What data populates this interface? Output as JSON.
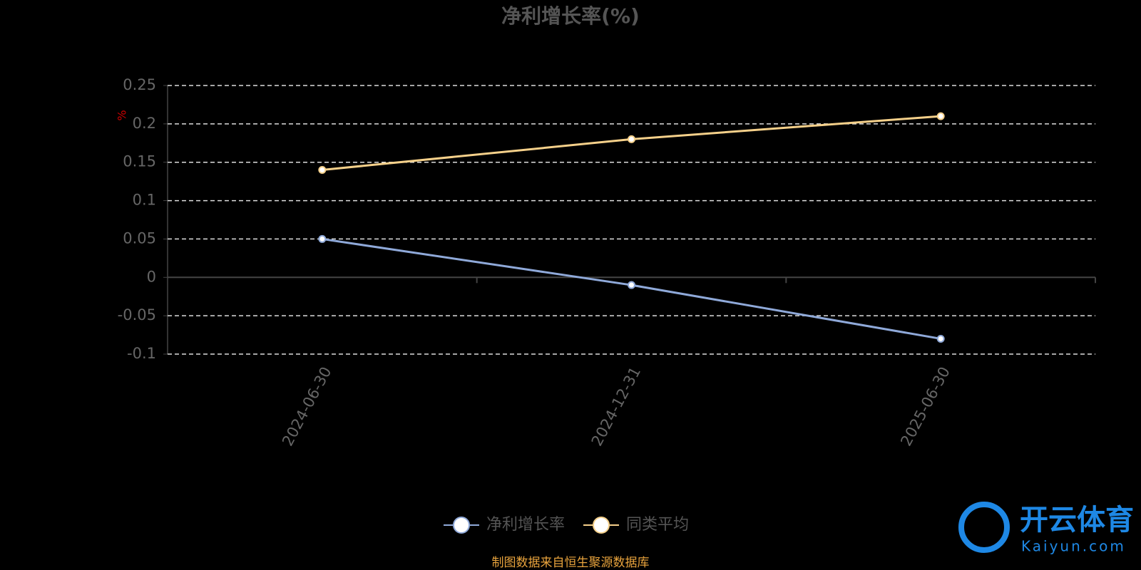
{
  "chart_data": {
    "type": "line",
    "title": "净利增长率(%)",
    "y_label": "%",
    "categories": [
      "2024-06-30",
      "2024-12-31",
      "2025-06-30"
    ],
    "series": [
      {
        "name": "净利增长率",
        "color": "#8fa9d9",
        "values": [
          0.05,
          -0.01,
          -0.08
        ]
      },
      {
        "name": "同类平均",
        "color": "#f5d08a",
        "values": [
          0.14,
          0.18,
          0.21
        ]
      }
    ],
    "ylim": [
      -0.1,
      0.25
    ],
    "yticks": [
      0.25,
      0.2,
      0.15,
      0.1,
      0.05,
      0,
      -0.05,
      -0.1
    ],
    "grid": true,
    "source": "制图数据来自恒生聚源数据库"
  },
  "watermark": {
    "name": "开云体育",
    "url": "Kaiyun.com"
  }
}
